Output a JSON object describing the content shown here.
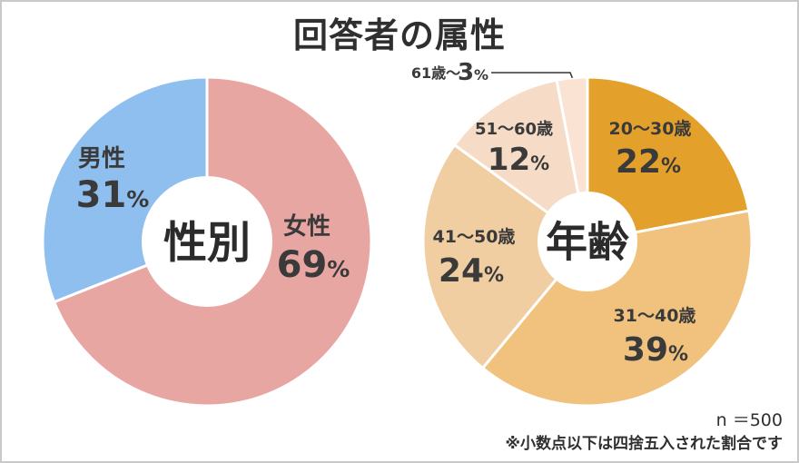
{
  "title": "回答者の属性",
  "sample_size": "n ＝500",
  "footnote": "※小数点以下は四捨五入された割合です",
  "chart_data": [
    {
      "type": "pie",
      "center_label": "性別",
      "percent_sign": "%",
      "slices": [
        {
          "label": "女性",
          "value": 69,
          "color": "#e8a6a3"
        },
        {
          "label": "男性",
          "value": 31,
          "color": "#8fbfee"
        }
      ]
    },
    {
      "type": "pie",
      "center_label": "年齢",
      "percent_sign": "%",
      "slices": [
        {
          "label": "20～30歳",
          "value": 22,
          "color": "#e3a02b"
        },
        {
          "label": "31～40歳",
          "value": 39,
          "color": "#f0c27e"
        },
        {
          "label": "41～50歳",
          "value": 24,
          "color": "#f0cea2"
        },
        {
          "label": "51～60歳",
          "value": 12,
          "color": "#f6dcc6"
        },
        {
          "label": "61歳～",
          "value": 3,
          "color": "#fbe3d3"
        }
      ]
    }
  ]
}
